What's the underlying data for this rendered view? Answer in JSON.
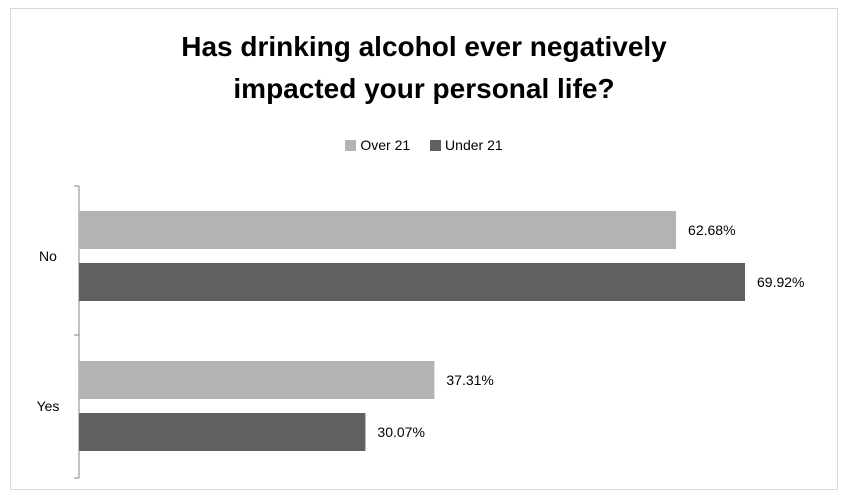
{
  "chart_data": {
    "type": "bar",
    "orientation": "horizontal",
    "title": "Has drinking alcohol ever negatively impacted your personal life?",
    "categories": [
      "No",
      "Yes"
    ],
    "series": [
      {
        "name": "Over 21",
        "values": [
          62.68,
          37.31
        ],
        "labels": [
          "62.68%",
          "37.31%"
        ],
        "color": "#b3b3b3"
      },
      {
        "name": "Under 21",
        "values": [
          69.92,
          30.07
        ],
        "labels": [
          "69.92%",
          "30.07%"
        ],
        "color": "#606060"
      }
    ],
    "value_range": [
      0,
      80
    ],
    "legend_position": "top",
    "grid": false
  }
}
